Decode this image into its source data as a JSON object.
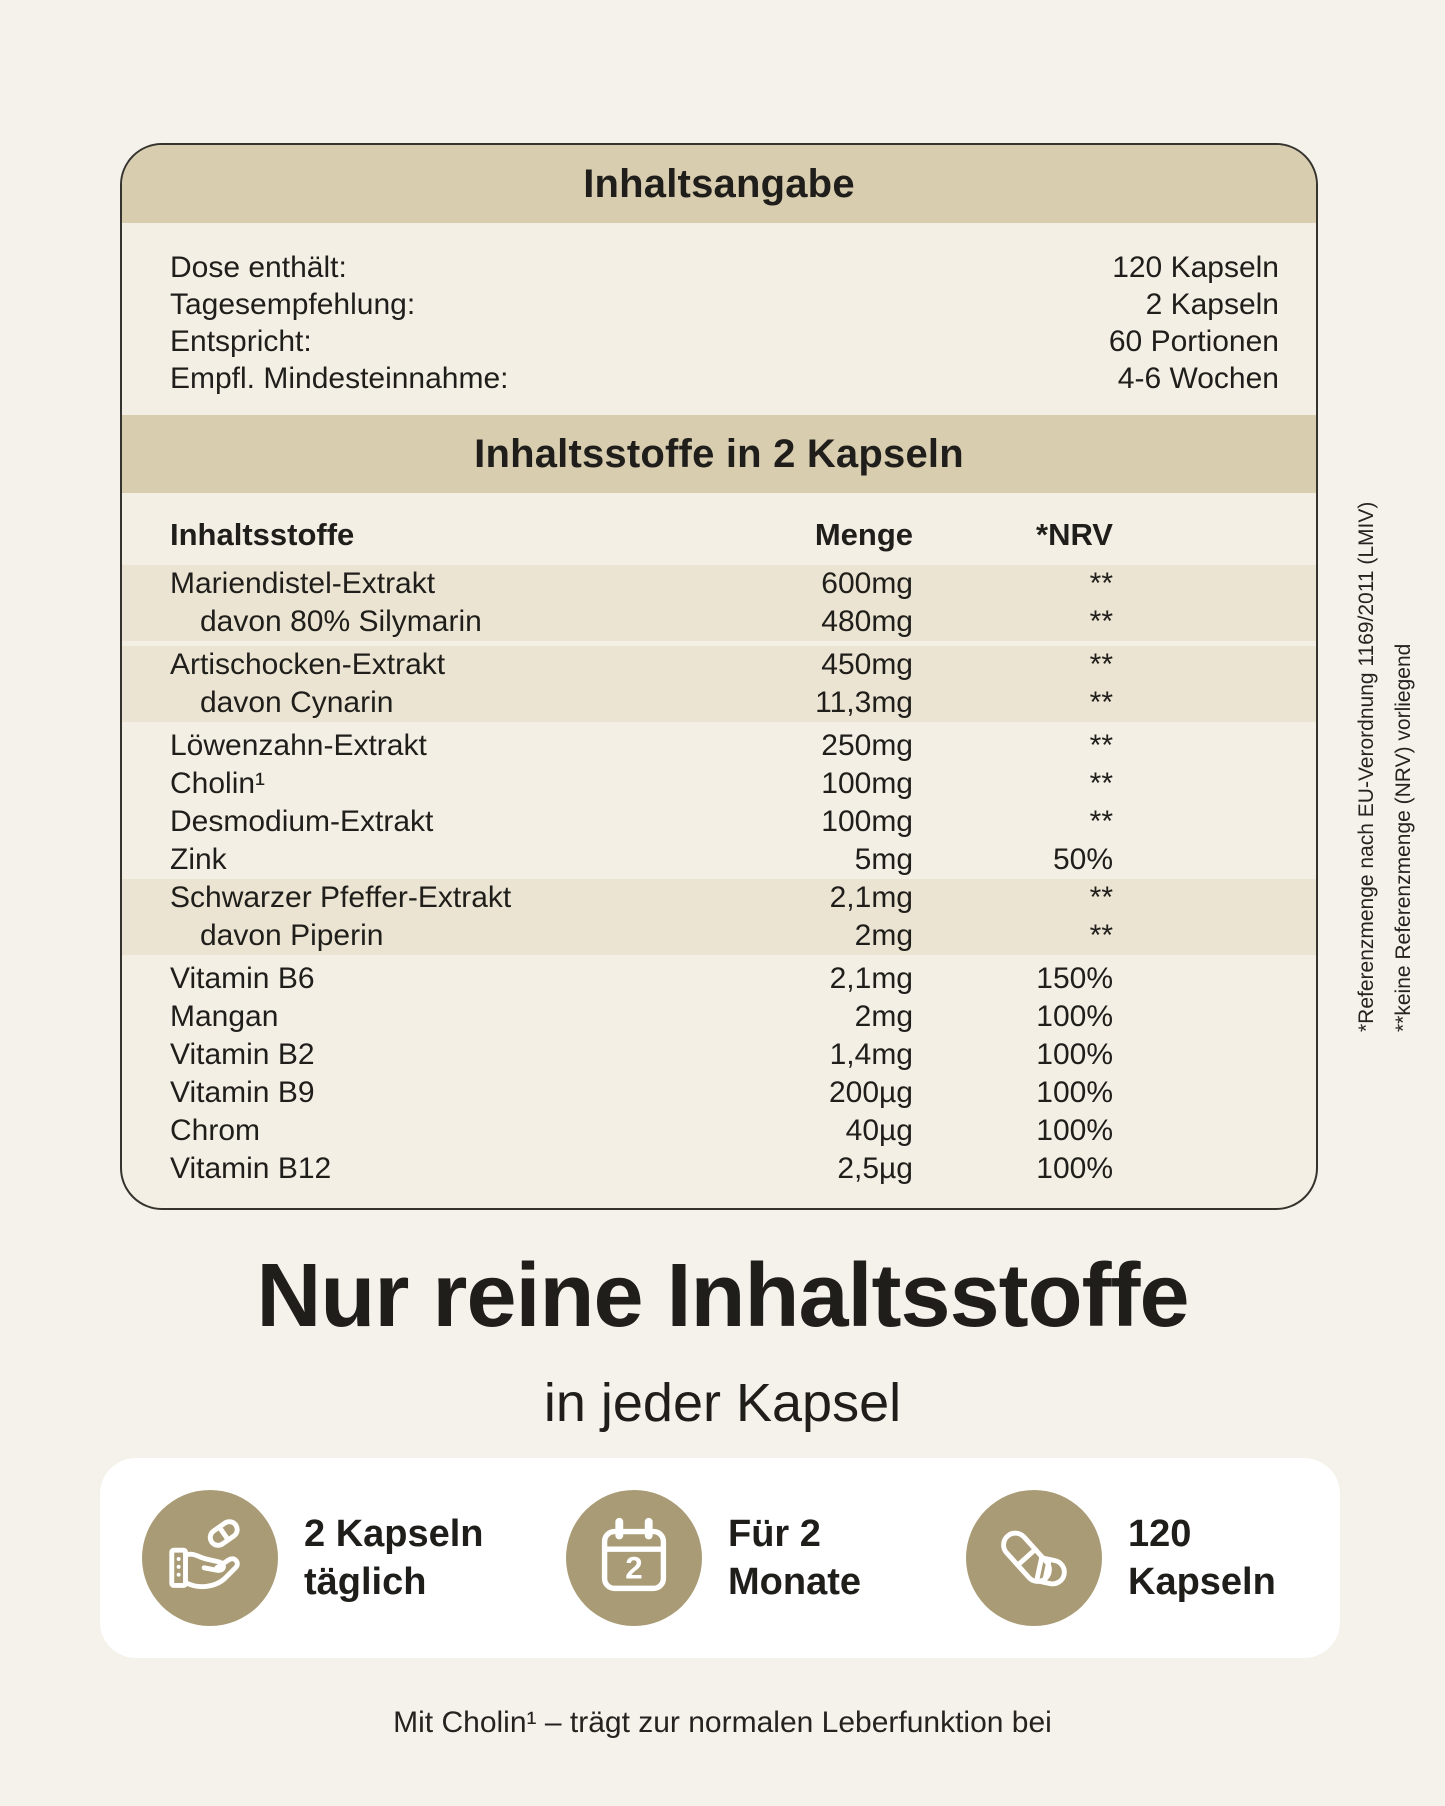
{
  "panel": {
    "title": "Inhaltsangabe",
    "info_rows": [
      {
        "label": "Dose enthält:",
        "value": "120 Kapseln"
      },
      {
        "label": "Tagesempfehlung:",
        "value": "2 Kapseln"
      },
      {
        "label": "Entspricht:",
        "value": "60 Portionen"
      },
      {
        "label": "Empfl. Mindesteinnahme:",
        "value": "4-6 Wochen"
      }
    ],
    "section_title": "Inhaltsstoffe in 2 Kapseln",
    "table": {
      "headers": {
        "name": "Inhaltsstoffe",
        "amount": "Menge",
        "nrv": "*NRV"
      },
      "groups": [
        {
          "shaded": true,
          "rows": [
            {
              "name": "Mariendistel-Extrakt",
              "amount": "600mg",
              "nrv": "**",
              "indent": false
            },
            {
              "name": "davon 80% Silymarin",
              "amount": "480mg",
              "nrv": "**",
              "indent": true
            }
          ]
        },
        {
          "shaded": true,
          "rows": [
            {
              "name": "Artischocken-Extrakt",
              "amount": "450mg",
              "nrv": "**",
              "indent": false
            },
            {
              "name": "davon Cynarin",
              "amount": "11,3mg",
              "nrv": "**",
              "indent": true
            }
          ]
        },
        {
          "shaded": false,
          "rows": [
            {
              "name": "Löwenzahn-Extrakt",
              "amount": "250mg",
              "nrv": "**",
              "indent": false
            },
            {
              "name": "Cholin¹",
              "amount": "100mg",
              "nrv": "**",
              "indent": false
            },
            {
              "name": "Desmodium-Extrakt",
              "amount": "100mg",
              "nrv": "**",
              "indent": false
            },
            {
              "name": "Zink",
              "amount": "5mg",
              "nrv": "50%",
              "indent": false
            }
          ]
        },
        {
          "shaded": true,
          "rows": [
            {
              "name": "Schwarzer Pfeffer-Extrakt",
              "amount": "2,1mg",
              "nrv": "**",
              "indent": false
            },
            {
              "name": "davon Piperin",
              "amount": "2mg",
              "nrv": "**",
              "indent": true
            }
          ]
        },
        {
          "shaded": false,
          "rows": [
            {
              "name": "Vitamin B6",
              "amount": "2,1mg",
              "nrv": "150%",
              "indent": false
            },
            {
              "name": "Mangan",
              "amount": "2mg",
              "nrv": "100%",
              "indent": false
            },
            {
              "name": "Vitamin B2",
              "amount": "1,4mg",
              "nrv": "100%",
              "indent": false
            },
            {
              "name": "Vitamin B9",
              "amount": "200µg",
              "nrv": "100%",
              "indent": false
            },
            {
              "name": "Chrom",
              "amount": "40µg",
              "nrv": "100%",
              "indent": false
            },
            {
              "name": "Vitamin B12",
              "amount": "2,5µg",
              "nrv": "100%",
              "indent": false
            }
          ]
        }
      ]
    },
    "footnotes": [
      "*Referenzmenge nach EU-Verordnung 1169/2011 (LMIV)",
      "**keine Referenzmenge (NRV) vorliegend"
    ]
  },
  "headline": {
    "title": "Nur reine Inhaltsstoffe",
    "subtitle": "in jeder Kapsel"
  },
  "features": [
    {
      "icon": "hand-capsule-icon",
      "line1": "2 Kapseln",
      "line2": "täglich"
    },
    {
      "icon": "calendar-icon",
      "line1": "Für 2",
      "line2": "Monate",
      "icon_number": "2"
    },
    {
      "icon": "capsules-icon",
      "line1": "120",
      "line2": "Kapseln"
    }
  ],
  "caption": "Mit Cholin¹ – trägt zur normalen Leberfunktion bei",
  "colors": {
    "page_bg": "#f5f2ec",
    "card_bg": "#f4efe5",
    "band": "#d9cdb0",
    "stripe": "#ebe4d2",
    "accent_circle": "#a99b75",
    "text": "#1f1e1b",
    "features_card_bg": "#ffffff",
    "card_border": "#35332d"
  }
}
